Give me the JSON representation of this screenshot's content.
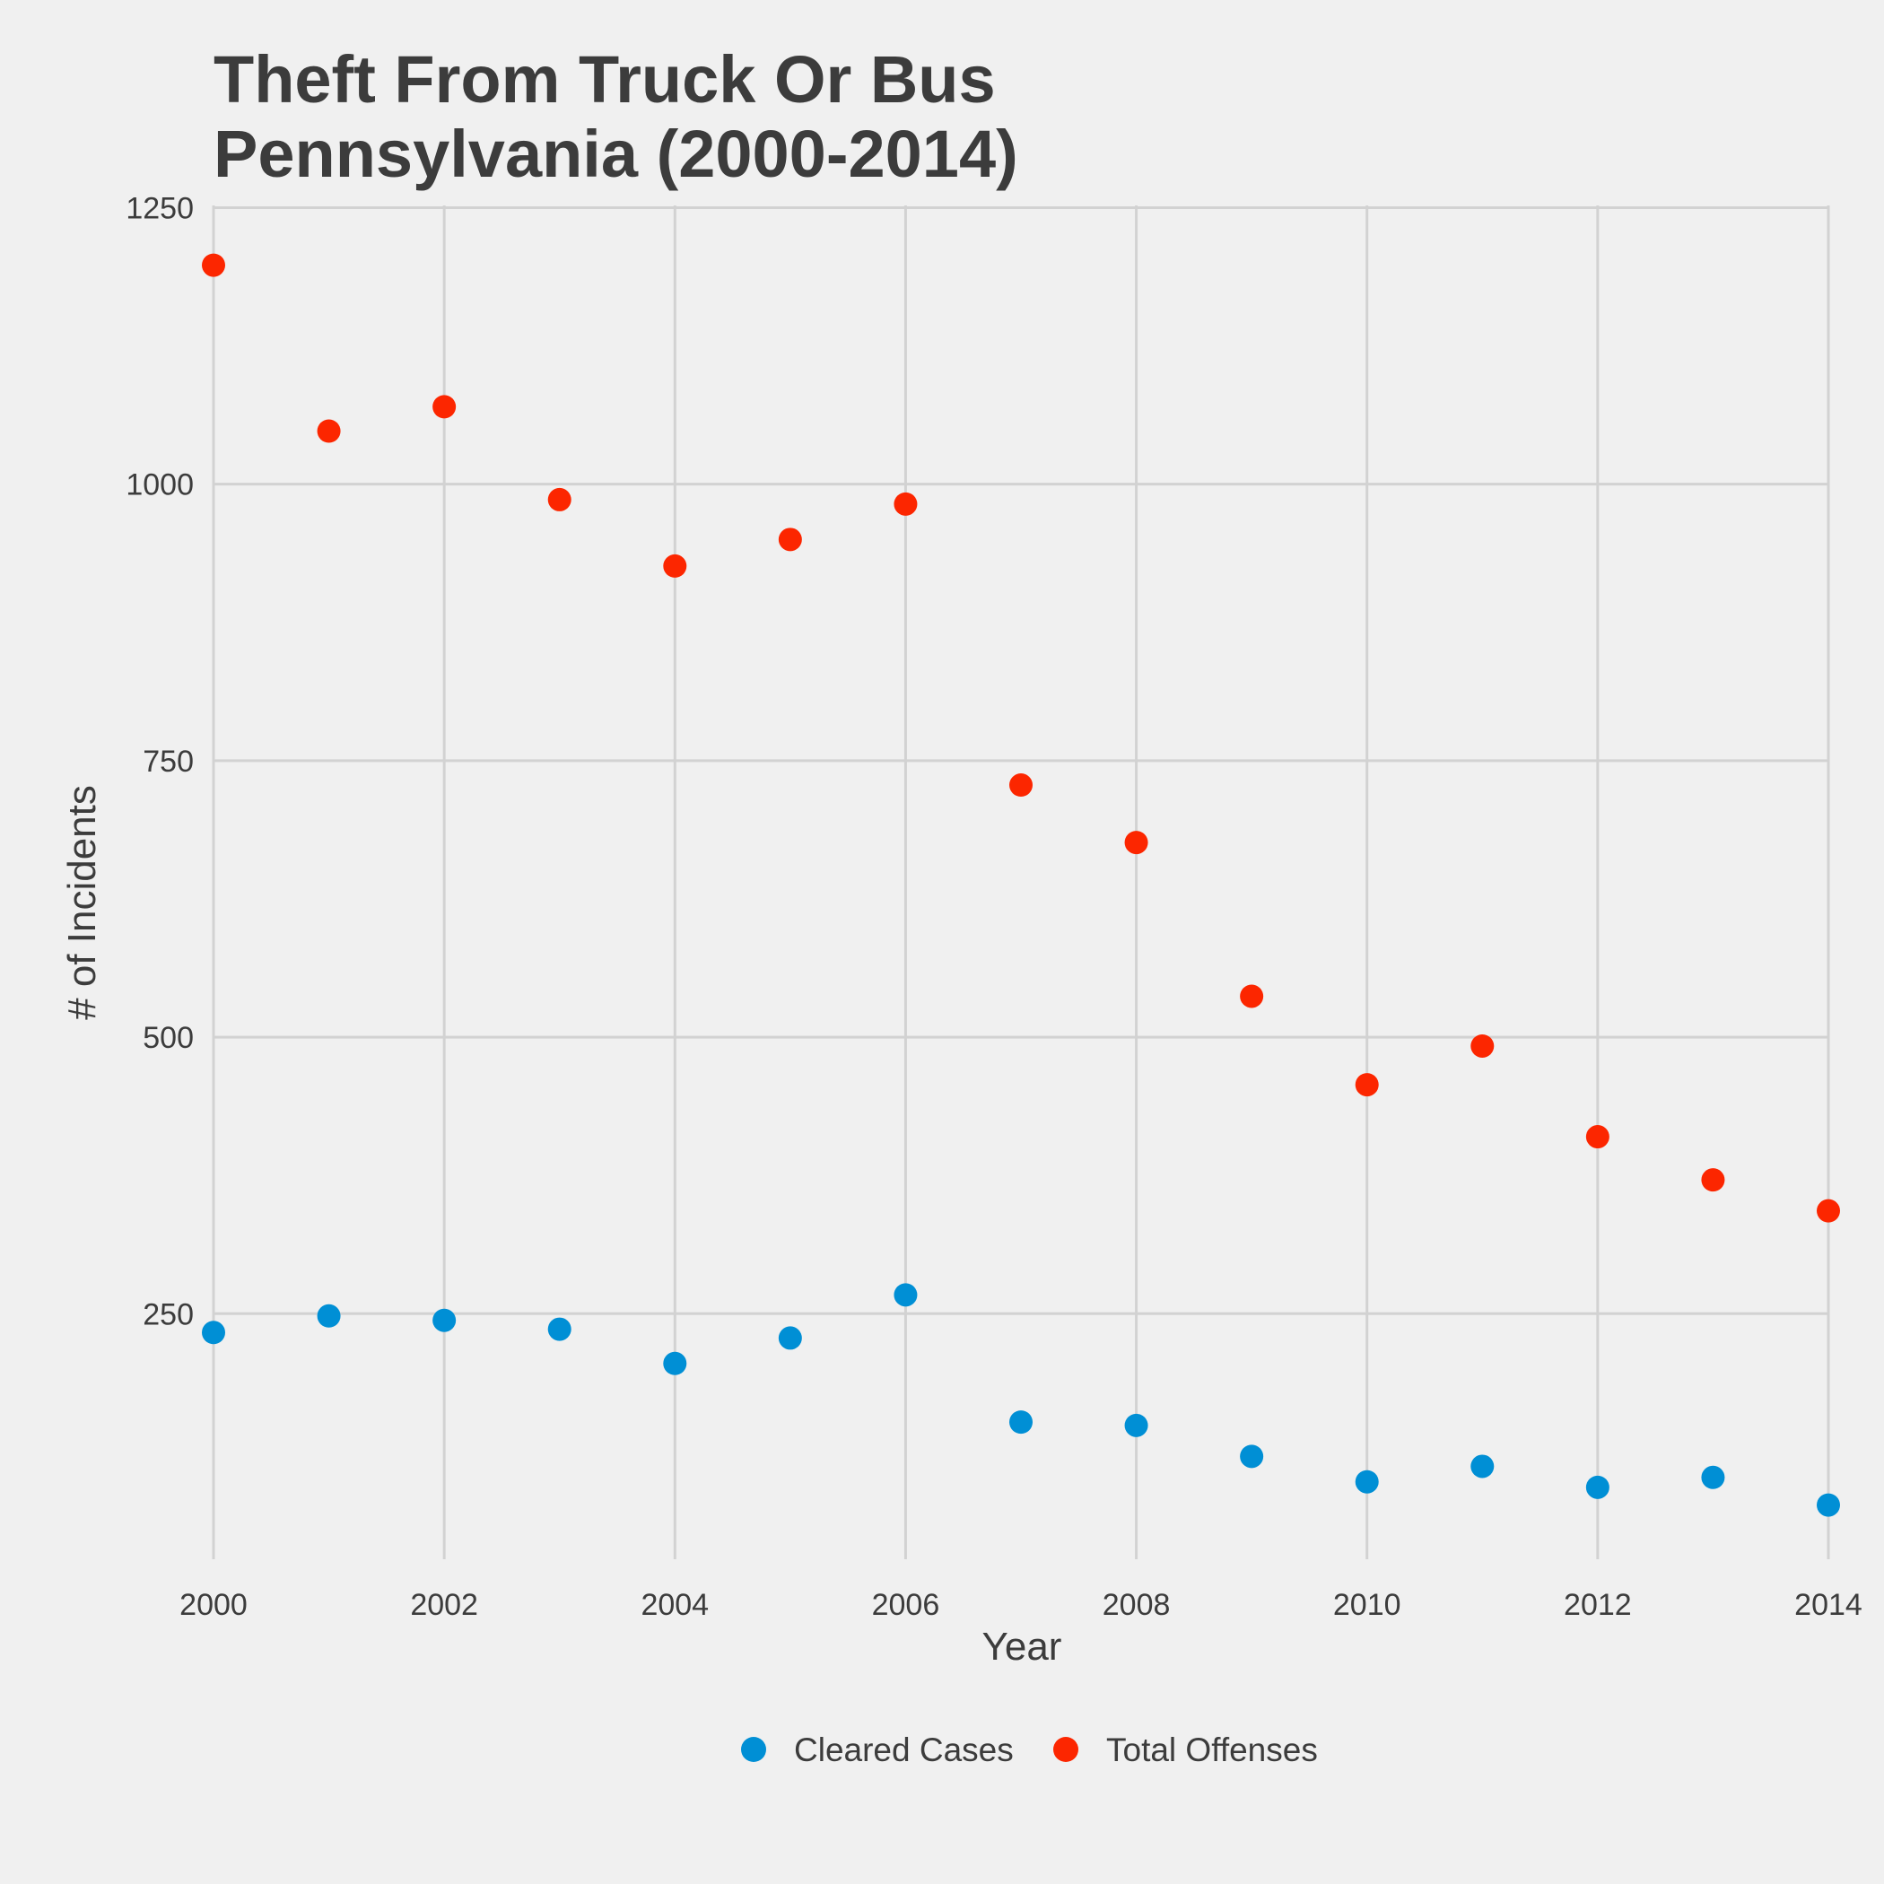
{
  "chart_data": {
    "type": "scatter",
    "title": [
      "Theft From Truck Or Bus",
      "Pennsylvania (2000-2014)"
    ],
    "xlabel": "Year",
    "ylabel": "# of Incidents",
    "x": [
      2000,
      2001,
      2002,
      2003,
      2004,
      2005,
      2006,
      2007,
      2008,
      2009,
      2010,
      2011,
      2012,
      2013,
      2014
    ],
    "xlim": [
      2000,
      2014
    ],
    "ylim": [
      28,
      1252
    ],
    "x_ticks": [
      2000,
      2002,
      2004,
      2006,
      2008,
      2010,
      2012,
      2014
    ],
    "y_ticks": [
      250,
      500,
      750,
      1000,
      1250
    ],
    "x_tick_labels": [
      "2000",
      "2002",
      "2004",
      "2006",
      "2008",
      "2010",
      "2012",
      "2014"
    ],
    "y_tick_labels": [
      "250",
      "500",
      "750",
      "1000",
      "1250"
    ],
    "grid": true,
    "legend_position": "bottom",
    "series": [
      {
        "name": "Cleared Cases",
        "color": "#008fd5",
        "values": [
          233,
          248,
          244,
          236,
          205,
          228,
          267,
          152,
          149,
          121,
          98,
          112,
          93,
          102,
          77
        ]
      },
      {
        "name": "Total Offenses",
        "color": "#fc2600",
        "values": [
          1198,
          1048,
          1070,
          986,
          926,
          950,
          982,
          728,
          676,
          537,
          457,
          492,
          410,
          371,
          343
        ]
      }
    ]
  }
}
